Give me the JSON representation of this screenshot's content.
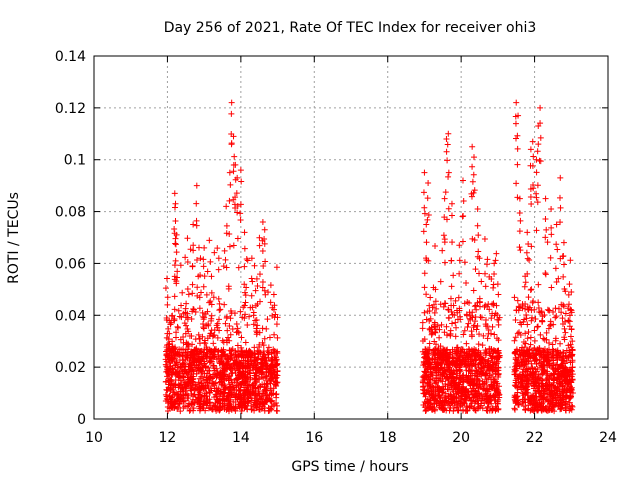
{
  "chart_data": {
    "type": "scatter",
    "title": "Day 256 of 2021, Rate Of TEC Index for receiver ohi3",
    "xlabel": "GPS time / hours",
    "ylabel": "ROTI / TECUs",
    "xlim": [
      10,
      24
    ],
    "ylim": [
      0,
      0.14
    ],
    "x_ticks": [
      "10",
      "12",
      "14",
      "16",
      "18",
      "20",
      "22",
      "24"
    ],
    "y_ticks": [
      "0",
      "0.02",
      "0.04",
      "0.06",
      "0.08",
      "0.1",
      "0.12",
      "0.14"
    ],
    "grid": true,
    "marker": "+",
    "colors": {
      "series": "#ff0000",
      "grid": "#a0a0a0",
      "axes": "#000000"
    },
    "series": [
      {
        "name": "ROTI",
        "clusters": [
          {
            "x_range": [
              11.95,
              15.0
            ],
            "count": 1500,
            "max_values": [
              [
                12.0,
                0.044
              ],
              [
                12.05,
                0.038
              ],
              [
                12.2,
                0.087
              ],
              [
                12.22,
                0.083
              ],
              [
                12.25,
                0.071
              ],
              [
                12.2,
                0.055
              ],
              [
                12.8,
                0.09
              ],
              [
                12.7,
                0.075
              ],
              [
                12.9,
                0.062
              ],
              [
                13.0,
                0.066
              ],
              [
                13.2,
                0.055
              ],
              [
                13.4,
                0.062
              ],
              [
                13.6,
                0.082
              ],
              [
                13.7,
                0.095
              ],
              [
                13.75,
                0.122
              ],
              [
                13.8,
                0.109
              ],
              [
                13.85,
                0.098
              ],
              [
                13.9,
                0.093
              ],
              [
                14.0,
                0.096
              ],
              [
                14.1,
                0.072
              ],
              [
                14.3,
                0.062
              ],
              [
                14.6,
                0.076
              ],
              [
                14.65,
                0.073
              ],
              [
                14.9,
                0.048
              ]
            ]
          },
          {
            "x_range": [
              18.95,
              21.05
            ],
            "count": 1100,
            "max_values": [
              [
                19.0,
                0.095
              ],
              [
                19.1,
                0.091
              ],
              [
                19.05,
                0.075
              ],
              [
                19.3,
                0.05
              ],
              [
                19.55,
                0.085
              ],
              [
                19.6,
                0.108
              ],
              [
                19.65,
                0.11
              ],
              [
                19.75,
                0.083
              ],
              [
                19.95,
                0.067
              ],
              [
                20.05,
                0.092
              ],
              [
                20.3,
                0.105
              ],
              [
                20.35,
                0.101
              ],
              [
                20.45,
                0.081
              ],
              [
                20.5,
                0.062
              ],
              [
                20.65,
                0.056
              ],
              [
                20.9,
                0.06
              ],
              [
                21.0,
                0.052
              ]
            ]
          },
          {
            "x_range": [
              21.45,
              23.05
            ],
            "count": 850,
            "max_values": [
              [
                21.5,
                0.122
              ],
              [
                21.55,
                0.117
              ],
              [
                21.6,
                0.085
              ],
              [
                21.8,
                0.072
              ],
              [
                21.9,
                0.104
              ],
              [
                21.95,
                0.107
              ],
              [
                22.05,
                0.1
              ],
              [
                22.15,
                0.12
              ],
              [
                22.1,
                0.113
              ],
              [
                22.3,
                0.085
              ],
              [
                22.45,
                0.081
              ],
              [
                22.6,
                0.075
              ],
              [
                22.7,
                0.093
              ],
              [
                22.8,
                0.068
              ],
              [
                22.95,
                0.052
              ],
              [
                23.0,
                0.049
              ]
            ]
          }
        ]
      }
    ]
  }
}
